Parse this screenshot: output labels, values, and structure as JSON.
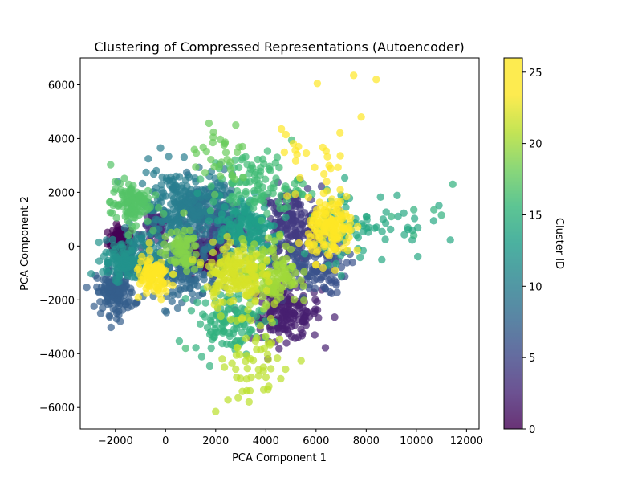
{
  "chart_data": {
    "type": "scatter",
    "title": "Clustering of Compressed Representations (Autoencoder)",
    "xlabel": "PCA Component 1",
    "ylabel": "PCA Component 2",
    "xlim": [
      -3400,
      12500
    ],
    "ylim": [
      -6800,
      7000
    ],
    "xticks": [
      -2000,
      0,
      2000,
      4000,
      6000,
      8000,
      10000,
      12000
    ],
    "xtick_labels": [
      "−2000",
      "0",
      "2000",
      "4000",
      "6000",
      "8000",
      "10000",
      "12000"
    ],
    "yticks": [
      -6000,
      -4000,
      -2000,
      0,
      2000,
      4000,
      6000
    ],
    "ytick_labels": [
      "−6000",
      "−4000",
      "−2000",
      "0",
      "2000",
      "4000",
      "6000"
    ],
    "colorbar": {
      "label": "Cluster ID",
      "range": [
        0,
        26
      ],
      "ticks": [
        0,
        5,
        10,
        15,
        20,
        25
      ],
      "tick_labels": [
        "0",
        "5",
        "10",
        "15",
        "20",
        "25"
      ],
      "colormap": "viridis"
    },
    "grid": false,
    "alpha": 0.7,
    "clusters": [
      {
        "id": 0,
        "cx": -1800,
        "cy": 200,
        "sx": 250,
        "sy": 250,
        "n": 90
      },
      {
        "id": 1,
        "cx": 1500,
        "cy": -300,
        "sx": 450,
        "sy": 400,
        "n": 130
      },
      {
        "id": 2,
        "cx": 4800,
        "cy": -2500,
        "sx": 700,
        "sy": 500,
        "n": 170
      },
      {
        "id": 3,
        "cx": -400,
        "cy": 700,
        "sx": 250,
        "sy": 300,
        "n": 60
      },
      {
        "id": 4,
        "cx": 5000,
        "cy": 800,
        "sx": 600,
        "sy": 700,
        "n": 180
      },
      {
        "id": 5,
        "cx": 2300,
        "cy": 700,
        "sx": 500,
        "sy": 450,
        "n": 120
      },
      {
        "id": 6,
        "cx": 5800,
        "cy": -800,
        "sx": 700,
        "sy": 500,
        "n": 120
      },
      {
        "id": 7,
        "cx": -2000,
        "cy": -1700,
        "sx": 380,
        "sy": 420,
        "n": 140
      },
      {
        "id": 8,
        "cx": 800,
        "cy": -1000,
        "sx": 600,
        "sy": 500,
        "n": 130
      },
      {
        "id": 9,
        "cx": 1600,
        "cy": 1300,
        "sx": 650,
        "sy": 600,
        "n": 160
      },
      {
        "id": 10,
        "cx": 500,
        "cy": 1500,
        "sx": 800,
        "sy": 700,
        "n": 200
      },
      {
        "id": 11,
        "cx": -1200,
        "cy": -500,
        "sx": 450,
        "sy": 450,
        "n": 100
      },
      {
        "id": 12,
        "cx": -1800,
        "cy": -500,
        "sx": 350,
        "sy": 350,
        "n": 70
      },
      {
        "id": 13,
        "cx": 3300,
        "cy": 600,
        "sx": 600,
        "sy": 650,
        "n": 150
      },
      {
        "id": 14,
        "cx": 7800,
        "cy": 800,
        "sx": 1300,
        "sy": 700,
        "n": 80
      },
      {
        "id": 15,
        "cx": 2500,
        "cy": -2800,
        "sx": 700,
        "sy": 550,
        "n": 110
      },
      {
        "id": 16,
        "cx": 3600,
        "cy": 2300,
        "sx": 900,
        "sy": 600,
        "n": 100
      },
      {
        "id": 17,
        "cx": -1400,
        "cy": 1600,
        "sx": 400,
        "sy": 400,
        "n": 110
      },
      {
        "id": 18,
        "cx": 2200,
        "cy": 3300,
        "sx": 700,
        "sy": 600,
        "n": 30
      },
      {
        "id": 19,
        "cx": 600,
        "cy": -200,
        "sx": 350,
        "sy": 400,
        "n": 70
      },
      {
        "id": 20,
        "cx": 4200,
        "cy": -1000,
        "sx": 550,
        "sy": 600,
        "n": 150
      },
      {
        "id": 21,
        "cx": 3600,
        "cy": -4000,
        "sx": 700,
        "sy": 1000,
        "n": 60
      },
      {
        "id": 22,
        "cx": 2700,
        "cy": -1000,
        "sx": 550,
        "sy": 550,
        "n": 160
      },
      {
        "id": 24,
        "cx": 6600,
        "cy": 600,
        "sx": 450,
        "sy": 550,
        "n": 150
      },
      {
        "id": 25,
        "cx": -500,
        "cy": -1200,
        "sx": 350,
        "sy": 400,
        "n": 90
      },
      {
        "id": 26,
        "cx": 6000,
        "cy": 3200,
        "sx": 800,
        "sy": 900,
        "n": 25
      }
    ],
    "outlier_points": [
      {
        "x": 6050,
        "y": 6050,
        "c": 25
      },
      {
        "x": 7500,
        "y": 6350,
        "c": 25
      },
      {
        "x": 8400,
        "y": 6200,
        "c": 25
      },
      {
        "x": 7800,
        "y": 4800,
        "c": 25
      },
      {
        "x": 11450,
        "y": 2300,
        "c": 15
      },
      {
        "x": 10700,
        "y": 1350,
        "c": 15
      },
      {
        "x": 11000,
        "y": 1150,
        "c": 15
      },
      {
        "x": 9900,
        "y": 1350,
        "c": 15
      },
      {
        "x": 9000,
        "y": 1100,
        "c": 15
      },
      {
        "x": 9900,
        "y": 400,
        "c": 15
      },
      {
        "x": 2000,
        "y": -6150,
        "c": 21
      },
      {
        "x": 2800,
        "y": 4500,
        "c": 18
      },
      {
        "x": 1900,
        "y": 4050,
        "c": 18
      },
      {
        "x": -200,
        "y": 3650,
        "c": 10
      },
      {
        "x": 800,
        "y": -3800,
        "c": 16
      }
    ]
  }
}
